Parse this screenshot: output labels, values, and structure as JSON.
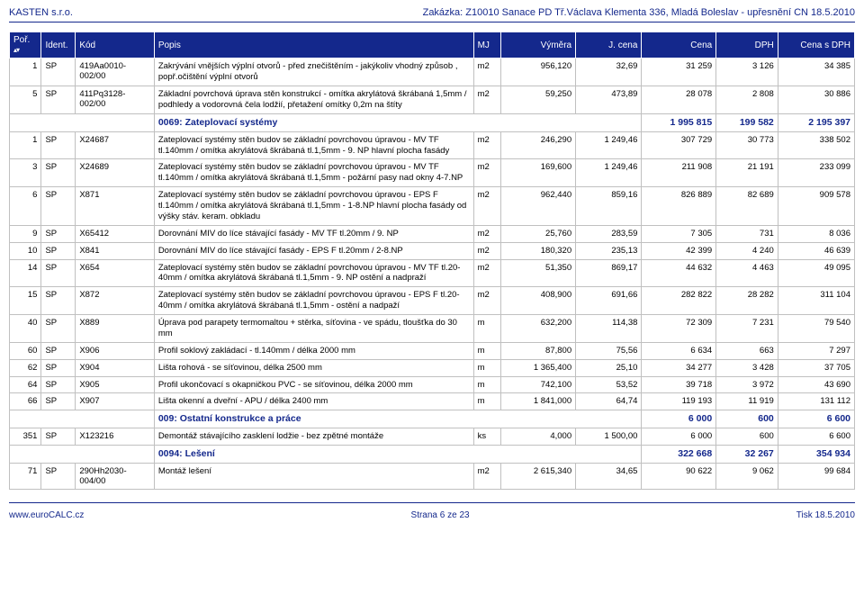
{
  "header": {
    "left": "KASTEN s.r.o.",
    "right": "Zakázka: Z10010 Sanace PD Tř.Václava Klementa 336, Mladá Boleslav - upřesnění CN 18.5.2010"
  },
  "columns": [
    "Poř.",
    "Ident.",
    "Kód",
    "Popis",
    "MJ",
    "Výměra",
    "J. cena",
    "Cena",
    "DPH",
    "Cena s DPH"
  ],
  "rows": [
    {
      "type": "data",
      "por": "1",
      "ident": "SP",
      "kod": "419Aa0010-002/00",
      "popis": "Zakrývání vnějších výplní otvorů - před znečištěním - jakýkoliv vhodný způsob , popř.očištění výplní otvorů",
      "mj": "m2",
      "vym": "956,120",
      "jc": "32,69",
      "cena": "31 259",
      "dph": "3 126",
      "cdph": "34 385"
    },
    {
      "type": "data",
      "por": "5",
      "ident": "SP",
      "kod": "411Pq3128-002/00",
      "popis": "Základní povrchová úprava stěn konstrukcí - omítka akrylátová škrábaná 1,5mm / podhledy a vodorovná čela lodžií, přetažení omítky 0,2m na štíty",
      "mj": "m2",
      "vym": "59,250",
      "jc": "473,89",
      "cena": "28 078",
      "dph": "2 808",
      "cdph": "30 886"
    },
    {
      "type": "section",
      "title": "0069: Zateplovací systémy",
      "cena": "1 995 815",
      "dph": "199 582",
      "cdph": "2 195 397"
    },
    {
      "type": "data",
      "por": "1",
      "ident": "SP",
      "kod": "X24687",
      "popis": "Zateplovací systémy stěn budov se základní povrchovou úpravou - MV TF tl.140mm / omítka akrylátová škrábaná tl.1,5mm - 9. NP hlavní plocha fasády",
      "mj": "m2",
      "vym": "246,290",
      "jc": "1 249,46",
      "cena": "307 729",
      "dph": "30 773",
      "cdph": "338 502"
    },
    {
      "type": "data",
      "por": "3",
      "ident": "SP",
      "kod": "X24689",
      "popis": "Zateplovací systémy stěn budov se základní povrchovou úpravou - MV TF tl.140mm / omítka akrylátová škrábaná tl.1,5mm - požární pasy nad okny 4-7.NP",
      "mj": "m2",
      "vym": "169,600",
      "jc": "1 249,46",
      "cena": "211 908",
      "dph": "21 191",
      "cdph": "233 099"
    },
    {
      "type": "data",
      "por": "6",
      "ident": "SP",
      "kod": "X871",
      "popis": "Zateplovací systémy stěn budov se základní povrchovou úpravou - EPS F tl.140mm / omítka akrylátová škrábaná tl.1,5mm - 1-8.NP hlavní plocha fasády od výšky stáv. keram. obkladu",
      "mj": "m2",
      "vym": "962,440",
      "jc": "859,16",
      "cena": "826 889",
      "dph": "82 689",
      "cdph": "909 578"
    },
    {
      "type": "data",
      "por": "9",
      "ident": "SP",
      "kod": "X65412",
      "popis": "Dorovnání MIV do líce stávající fasády - MV TF tl.20mm / 9. NP",
      "mj": "m2",
      "vym": "25,760",
      "jc": "283,59",
      "cena": "7 305",
      "dph": "731",
      "cdph": "8 036"
    },
    {
      "type": "data",
      "por": "10",
      "ident": "SP",
      "kod": "X841",
      "popis": "Dorovnání MIV do líce stávající fasády - EPS F tl.20mm / 2-8.NP",
      "mj": "m2",
      "vym": "180,320",
      "jc": "235,13",
      "cena": "42 399",
      "dph": "4 240",
      "cdph": "46 639"
    },
    {
      "type": "data",
      "por": "14",
      "ident": "SP",
      "kod": "X654",
      "popis": "Zateplovací systémy stěn budov se základní povrchovou úpravou - MV TF tl.20-40mm / omítka akrylátová škrábaná tl.1,5mm - 9. NP ostění a nadpraží",
      "mj": "m2",
      "vym": "51,350",
      "jc": "869,17",
      "cena": "44 632",
      "dph": "4 463",
      "cdph": "49 095"
    },
    {
      "type": "data",
      "por": "15",
      "ident": "SP",
      "kod": "X872",
      "popis": "Zateplovací systémy stěn budov se základní povrchovou úpravou - EPS F tl.20-40mm / omítka akrylátová škrábaná tl.1,5mm - ostění a nadpaží",
      "mj": "m2",
      "vym": "408,900",
      "jc": "691,66",
      "cena": "282 822",
      "dph": "28 282",
      "cdph": "311 104"
    },
    {
      "type": "data",
      "por": "40",
      "ident": "SP",
      "kod": "X889",
      "popis": "Úprava pod parapety termomaltou + stěrka, síťovina - ve spádu, tloušťka do 30 mm",
      "mj": "m",
      "vym": "632,200",
      "jc": "114,38",
      "cena": "72 309",
      "dph": "7 231",
      "cdph": "79 540"
    },
    {
      "type": "data",
      "por": "60",
      "ident": "SP",
      "kod": "X906",
      "popis": "Profil soklový zakládací - tl.140mm / délka 2000 mm",
      "mj": "m",
      "vym": "87,800",
      "jc": "75,56",
      "cena": "6 634",
      "dph": "663",
      "cdph": "7 297"
    },
    {
      "type": "data",
      "por": "62",
      "ident": "SP",
      "kod": "X904",
      "popis": "Lišta rohová - se síťovinou, délka 2500 mm",
      "mj": "m",
      "vym": "1 365,400",
      "jc": "25,10",
      "cena": "34 277",
      "dph": "3 428",
      "cdph": "37 705"
    },
    {
      "type": "data",
      "por": "64",
      "ident": "SP",
      "kod": "X905",
      "popis": "Profil ukončovací s okapničkou PVC - se síťovinou, délka 2000 mm",
      "mj": "m",
      "vym": "742,100",
      "jc": "53,52",
      "cena": "39 718",
      "dph": "3 972",
      "cdph": "43 690"
    },
    {
      "type": "data",
      "por": "66",
      "ident": "SP",
      "kod": "X907",
      "popis": "Lišta okenní a dveřní - APU / délka 2400 mm",
      "mj": "m",
      "vym": "1 841,000",
      "jc": "64,74",
      "cena": "119 193",
      "dph": "11 919",
      "cdph": "131 112"
    },
    {
      "type": "section",
      "title": "009: Ostatní konstrukce a práce",
      "cena": "6 000",
      "dph": "600",
      "cdph": "6 600"
    },
    {
      "type": "data",
      "por": "351",
      "ident": "SP",
      "kod": "X123216",
      "popis": "Demontáž stávajícího zasklení lodžie - bez zpětné montáže",
      "mj": "ks",
      "vym": "4,000",
      "jc": "1 500,00",
      "cena": "6 000",
      "dph": "600",
      "cdph": "6 600"
    },
    {
      "type": "section",
      "title": "0094: Lešení",
      "cena": "322 668",
      "dph": "32 267",
      "cdph": "354 934"
    },
    {
      "type": "data",
      "por": "71",
      "ident": "SP",
      "kod": "290Hh2030-004/00",
      "popis": "Montáž lešení",
      "mj": "m2",
      "vym": "2 615,340",
      "jc": "34,65",
      "cena": "90 622",
      "dph": "9 062",
      "cdph": "99 684"
    }
  ],
  "footer": {
    "left": "www.euroCALC.cz",
    "center": "Strana  6 ze 23",
    "right": "Tisk  18.5.2010"
  },
  "colors": {
    "header_bg": "#14288c",
    "header_fg": "#ffffff",
    "border": "#c0c0c0",
    "accent": "#14288c"
  }
}
